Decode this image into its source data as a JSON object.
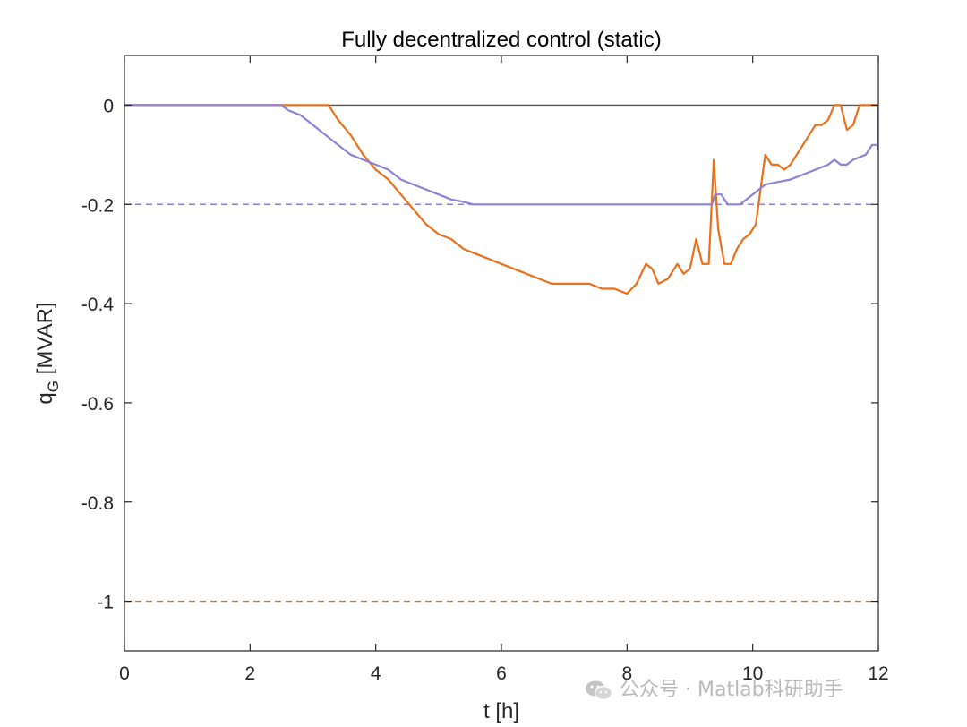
{
  "watermark": {
    "text": "公众号 · Matlab科研助手",
    "icon": "wechat-icon"
  },
  "chart_data": {
    "type": "line",
    "title": "Fully decentralized control (static)",
    "xlabel": "t [h]",
    "ylabel_main": "q",
    "ylabel_sub": "G",
    "ylabel_unit": " [MVAR]",
    "xlim": [
      0,
      12
    ],
    "ylim": [
      -1.1,
      0.1
    ],
    "xticks": [
      0,
      2,
      4,
      6,
      8,
      10,
      12
    ],
    "yticks": [
      0,
      -0.2,
      -0.4,
      -0.6,
      -0.8,
      -1
    ],
    "ytick_labels": [
      "0",
      "-0.2",
      "-0.4",
      "-0.6",
      "-0.8",
      "-1"
    ],
    "grid": false,
    "colors": {
      "orange": "#e8701a",
      "purple": "#8b82d2",
      "zero": "#555555"
    },
    "reference_lines": [
      {
        "y": 0,
        "style": "solid",
        "color": "#555555"
      },
      {
        "y": -0.2,
        "style": "dashed",
        "color": "#8b82d2"
      },
      {
        "y": -1,
        "style": "dashed",
        "color": "#e8701a"
      }
    ],
    "series": [
      {
        "color": "#e8701a",
        "x": [
          0,
          2.5,
          3.25,
          3.4,
          3.6,
          3.8,
          4.0,
          4.2,
          4.4,
          4.6,
          4.8,
          5.0,
          5.2,
          5.4,
          5.6,
          5.8,
          6.0,
          6.2,
          6.4,
          6.6,
          6.8,
          7.0,
          7.2,
          7.4,
          7.6,
          7.8,
          8.0,
          8.15,
          8.3,
          8.4,
          8.5,
          8.65,
          8.8,
          8.9,
          9.0,
          9.1,
          9.2,
          9.3,
          9.38,
          9.45,
          9.55,
          9.65,
          9.75,
          9.85,
          9.95,
          10.05,
          10.2,
          10.3,
          10.4,
          10.5,
          10.6,
          10.7,
          10.8,
          10.9,
          11.0,
          11.1,
          11.2,
          11.3,
          11.4,
          11.5,
          11.6,
          11.7,
          11.8,
          12.0
        ],
        "y": [
          0,
          0,
          0,
          -0.03,
          -0.06,
          -0.1,
          -0.13,
          -0.15,
          -0.18,
          -0.21,
          -0.24,
          -0.26,
          -0.27,
          -0.29,
          -0.3,
          -0.31,
          -0.32,
          -0.33,
          -0.34,
          -0.35,
          -0.36,
          -0.36,
          -0.36,
          -0.36,
          -0.37,
          -0.37,
          -0.38,
          -0.36,
          -0.32,
          -0.33,
          -0.36,
          -0.35,
          -0.32,
          -0.34,
          -0.33,
          -0.27,
          -0.32,
          -0.32,
          -0.11,
          -0.25,
          -0.32,
          -0.32,
          -0.29,
          -0.27,
          -0.26,
          -0.24,
          -0.1,
          -0.12,
          -0.12,
          -0.13,
          -0.12,
          -0.1,
          -0.08,
          -0.06,
          -0.04,
          -0.04,
          -0.03,
          0,
          0,
          -0.05,
          -0.04,
          0,
          0,
          0
        ]
      },
      {
        "color": "#8b82d2",
        "x": [
          0,
          2.5,
          2.6,
          2.8,
          3.0,
          3.2,
          3.4,
          3.6,
          3.8,
          4.0,
          4.2,
          4.4,
          4.6,
          4.8,
          5.0,
          5.2,
          5.4,
          5.55,
          6.0,
          7.0,
          8.0,
          9.0,
          9.35,
          9.4,
          9.5,
          9.6,
          9.8,
          10.0,
          10.2,
          10.4,
          10.6,
          10.8,
          11.0,
          11.2,
          11.3,
          11.4,
          11.5,
          11.6,
          11.8,
          11.9,
          12.0
        ],
        "y": [
          0,
          0,
          -0.01,
          -0.02,
          -0.04,
          -0.06,
          -0.08,
          -0.1,
          -0.11,
          -0.12,
          -0.13,
          -0.15,
          -0.16,
          -0.17,
          -0.18,
          -0.19,
          -0.195,
          -0.2,
          -0.2,
          -0.2,
          -0.2,
          -0.2,
          -0.2,
          -0.18,
          -0.18,
          -0.2,
          -0.2,
          -0.18,
          -0.16,
          -0.155,
          -0.15,
          -0.14,
          -0.13,
          -0.12,
          -0.11,
          -0.12,
          -0.12,
          -0.11,
          -0.1,
          -0.08,
          -0.08
        ]
      }
    ],
    "zero_line_drop": {
      "x": 12.0,
      "from": -0.09,
      "to": 0
    }
  }
}
